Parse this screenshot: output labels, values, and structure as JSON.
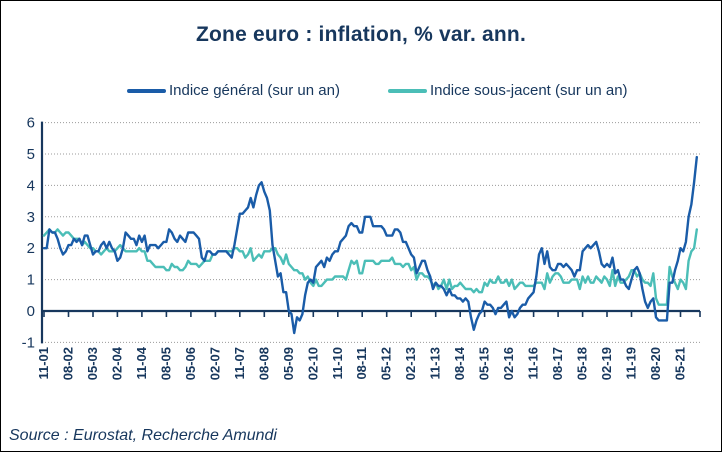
{
  "title": "Zone euro : inflation, % var. ann.",
  "source": "Source : Eurostat, Recherche Amundi",
  "legend": [
    {
      "label": "Indice général (sur un an)",
      "color": "#1A5CA8"
    },
    {
      "label": "Indice sous-jacent (sur un an)",
      "color": "#4BBEB7"
    }
  ],
  "colors": {
    "navy_text": "#17375D",
    "axis": "#17375D",
    "grid": "#9B9B9B",
    "line_general": "#1A5CA8",
    "line_core": "#4BBEB7",
    "background": "#FFFFFF",
    "border": "#000000"
  },
  "chart_data": {
    "type": "line",
    "title": "Zone euro : inflation, % var. ann.",
    "xlabel": "",
    "ylabel": "",
    "ylim": [
      -1,
      6
    ],
    "y_ticks": [
      -1,
      0,
      1,
      2,
      3,
      4,
      5,
      6
    ],
    "grid": "dotted-horizontal",
    "legend_position": "top",
    "frequency": "monthly",
    "x_start": "2001-11",
    "x_end": "2021-11",
    "tick_every_months": 9,
    "x_tick_labels": [
      "11-01",
      "08-02",
      "05-03",
      "02-04",
      "11-04",
      "08-05",
      "05-06",
      "02-07",
      "11-07",
      "08-08",
      "05-09",
      "02-10",
      "11-10",
      "08-11",
      "05-12",
      "02-13",
      "11-13",
      "08-14",
      "05-15",
      "02-16",
      "11-16",
      "08-17",
      "05-18",
      "02-19",
      "11-19",
      "08-20",
      "05-21"
    ],
    "series": [
      {
        "name": "Indice général (sur un an)",
        "color": "#1A5CA8",
        "values": [
          2.0,
          2.0,
          2.6,
          2.5,
          2.5,
          2.3,
          2.0,
          1.8,
          1.9,
          2.1,
          2.1,
          2.3,
          2.2,
          2.3,
          2.1,
          2.4,
          2.4,
          2.1,
          1.8,
          1.9,
          1.9,
          2.1,
          2.2,
          2.0,
          2.2,
          2.0,
          1.9,
          1.6,
          1.7,
          2.0,
          2.5,
          2.4,
          2.3,
          2.3,
          2.1,
          2.4,
          2.2,
          2.4,
          1.9,
          2.1,
          2.1,
          2.1,
          2.0,
          2.1,
          2.2,
          2.2,
          2.6,
          2.5,
          2.3,
          2.2,
          2.4,
          2.3,
          2.2,
          2.5,
          2.5,
          2.5,
          2.4,
          2.3,
          1.7,
          1.6,
          1.9,
          1.9,
          1.8,
          1.8,
          1.9,
          1.9,
          1.9,
          1.9,
          1.8,
          1.7,
          2.1,
          2.6,
          3.1,
          3.1,
          3.2,
          3.3,
          3.6,
          3.3,
          3.7,
          4.0,
          4.1,
          3.8,
          3.6,
          3.2,
          2.1,
          1.6,
          1.1,
          1.2,
          0.6,
          0.6,
          0.0,
          -0.1,
          -0.7,
          -0.2,
          -0.3,
          -0.1,
          0.5,
          0.9,
          1.0,
          0.9,
          1.4,
          1.5,
          1.6,
          1.4,
          1.7,
          1.6,
          1.8,
          1.9,
          1.9,
          2.2,
          2.3,
          2.4,
          2.7,
          2.8,
          2.7,
          2.7,
          2.5,
          2.5,
          3.0,
          3.0,
          3.0,
          2.7,
          2.7,
          2.7,
          2.7,
          2.6,
          2.4,
          2.4,
          2.4,
          2.6,
          2.6,
          2.5,
          2.2,
          2.2,
          2.0,
          1.8,
          1.7,
          1.2,
          1.4,
          1.6,
          1.6,
          1.3,
          1.1,
          0.7,
          0.9,
          0.8,
          0.8,
          0.7,
          0.5,
          0.7,
          0.5,
          0.5,
          0.4,
          0.4,
          0.3,
          0.4,
          0.3,
          -0.2,
          -0.6,
          -0.3,
          -0.1,
          0.0,
          0.3,
          0.2,
          0.2,
          0.1,
          -0.1,
          0.1,
          0.1,
          0.2,
          0.3,
          -0.2,
          0.0,
          -0.2,
          -0.1,
          0.1,
          0.2,
          0.2,
          0.4,
          0.5,
          0.6,
          1.1,
          1.8,
          2.0,
          1.5,
          1.9,
          1.4,
          1.3,
          1.3,
          1.5,
          1.5,
          1.4,
          1.5,
          1.4,
          1.3,
          1.1,
          1.3,
          1.3,
          1.9,
          2.0,
          2.1,
          2.0,
          2.1,
          2.2,
          1.9,
          1.5,
          1.4,
          1.5,
          1.4,
          1.7,
          1.2,
          1.3,
          1.0,
          1.0,
          0.8,
          0.7,
          1.0,
          1.3,
          1.4,
          1.2,
          0.7,
          0.3,
          0.1,
          0.3,
          0.4,
          -0.2,
          -0.3,
          -0.3,
          -0.3,
          -0.3,
          0.9,
          0.9,
          1.3,
          1.6,
          2.0,
          1.9,
          2.2,
          3.0,
          3.4,
          4.1,
          4.9
        ]
      },
      {
        "name": "Indice sous-jacent (sur un an)",
        "color": "#4BBEB7",
        "values": [
          2.4,
          2.5,
          2.6,
          2.5,
          2.5,
          2.6,
          2.5,
          2.4,
          2.5,
          2.5,
          2.4,
          2.3,
          2.3,
          2.3,
          2.1,
          2.2,
          2.1,
          2.0,
          2.0,
          1.9,
          1.9,
          1.8,
          1.9,
          2.0,
          1.9,
          1.9,
          1.9,
          2.0,
          2.1,
          2.0,
          1.9,
          1.9,
          1.9,
          1.9,
          1.9,
          2.0,
          1.9,
          1.9,
          1.6,
          1.6,
          1.5,
          1.4,
          1.4,
          1.4,
          1.4,
          1.3,
          1.3,
          1.5,
          1.4,
          1.4,
          1.3,
          1.3,
          1.4,
          1.6,
          1.5,
          1.5,
          1.5,
          1.4,
          1.5,
          1.6,
          1.6,
          1.6,
          1.8,
          1.8,
          1.9,
          1.9,
          1.9,
          1.9,
          1.9,
          1.9,
          2.0,
          2.0,
          1.9,
          1.9,
          1.7,
          1.8,
          2.0,
          1.6,
          1.7,
          1.8,
          1.7,
          1.9,
          1.9,
          1.9,
          2.0,
          2.0,
          1.8,
          1.7,
          1.5,
          1.8,
          1.5,
          1.4,
          1.3,
          1.3,
          1.2,
          1.2,
          1.0,
          1.1,
          0.9,
          0.8,
          1.0,
          0.8,
          0.8,
          0.9,
          1.0,
          1.0,
          1.0,
          1.1,
          1.1,
          1.1,
          1.1,
          1.0,
          1.3,
          1.6,
          1.5,
          1.6,
          1.2,
          1.2,
          1.6,
          1.6,
          1.6,
          1.6,
          1.5,
          1.5,
          1.6,
          1.6,
          1.6,
          1.6,
          1.7,
          1.5,
          1.5,
          1.5,
          1.4,
          1.5,
          1.5,
          1.3,
          1.4,
          1.0,
          1.2,
          1.2,
          1.1,
          1.1,
          1.0,
          0.8,
          0.9,
          0.7,
          0.8,
          1.0,
          0.7,
          1.0,
          0.7,
          0.8,
          0.8,
          0.9,
          0.8,
          0.7,
          0.7,
          0.7,
          0.6,
          0.7,
          0.6,
          0.6,
          0.9,
          0.8,
          1.0,
          0.9,
          0.9,
          1.1,
          0.9,
          0.9,
          1.0,
          0.8,
          1.0,
          0.7,
          0.8,
          0.9,
          0.9,
          0.8,
          0.8,
          0.8,
          0.8,
          0.9,
          0.9,
          0.9,
          0.7,
          1.2,
          0.9,
          1.1,
          1.2,
          1.2,
          1.1,
          0.9,
          0.9,
          0.9,
          1.0,
          1.0,
          1.0,
          0.7,
          1.1,
          0.9,
          1.1,
          0.9,
          0.9,
          1.1,
          1.0,
          0.9,
          1.1,
          1.0,
          0.8,
          1.3,
          0.8,
          1.1,
          0.9,
          0.9,
          1.0,
          1.1,
          1.3,
          1.3,
          1.1,
          1.2,
          1.0,
          0.9,
          0.9,
          0.8,
          1.2,
          0.4,
          0.2,
          0.2,
          0.2,
          0.2,
          1.4,
          1.1,
          0.9,
          0.7,
          1.0,
          0.9,
          0.7,
          1.6,
          1.9,
          2.0,
          2.6
        ]
      }
    ]
  }
}
